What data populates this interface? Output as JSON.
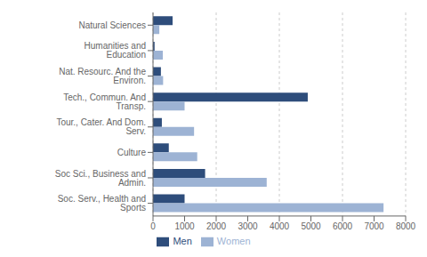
{
  "chart_data": {
    "type": "bar",
    "orientation": "horizontal",
    "categories": [
      "Soc. Serv., Health and Sports",
      "Soc Sci., Business and Admin.",
      "Culture",
      "Tour., Cater. And Dom. Serv.",
      "Tech., Commun. And Transp.",
      "Nat. Resourc. And the Environ.",
      "Humanities and Education",
      "Natural Sciences"
    ],
    "series": [
      {
        "name": "Men",
        "color": "#2e4d7b",
        "values": [
          1000,
          1650,
          500,
          280,
          4900,
          250,
          50,
          620
        ]
      },
      {
        "name": "Women",
        "color": "#9db3d4",
        "values": [
          7300,
          3600,
          1400,
          1300,
          1000,
          320,
          310,
          200
        ]
      }
    ],
    "xlim": [
      0,
      8000
    ],
    "xticks": [
      0,
      1000,
      2000,
      3000,
      4000,
      5000,
      6000,
      7000,
      8000
    ],
    "grid": true,
    "legend": "bottom"
  }
}
